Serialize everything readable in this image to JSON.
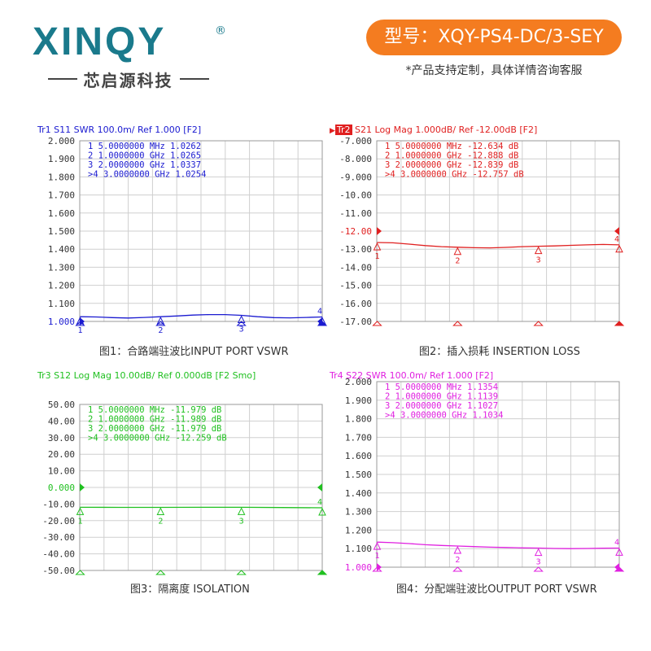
{
  "brand": {
    "logo_text": "XINQY",
    "registered": "®",
    "company_cn": "芯启源科技",
    "model_label": "型号：XQY-PS4-DC/3-SEY",
    "custom_note": "*产品支持定制，具体详情咨询客服"
  },
  "chart_data": [
    {
      "type": "line",
      "trace": "Tr1",
      "header_rest": "S11  SWR 100.0m/ Ref 1.000 [F2]",
      "color": "#1a1ad0",
      "ylim": [
        1.0,
        2.0
      ],
      "yticks": [
        "2.000",
        "1.900",
        "1.800",
        "1.700",
        "1.600",
        "1.500",
        "1.400",
        "1.300",
        "1.200",
        "1.100",
        "1.000"
      ],
      "ref_value": 1.0,
      "markers": [
        {
          "id": "1",
          "line": " 1  5.0000000 MHz  1.0262",
          "x": 0.005,
          "y": 1.0262
        },
        {
          "id": "2",
          "line": " 2  1.0000000 GHz  1.0265",
          "x": 1.0,
          "y": 1.0265
        },
        {
          "id": "3",
          "line": " 3  2.0000000 GHz  1.0337",
          "x": 2.0,
          "y": 1.0337
        },
        {
          "id": "4",
          "line": ">4  3.0000000 GHz  1.0254",
          "x": 3.0,
          "y": 1.0254
        }
      ],
      "x": [
        0.005,
        0.2,
        0.4,
        0.6,
        0.8,
        1.0,
        1.2,
        1.4,
        1.6,
        1.8,
        2.0,
        2.2,
        2.4,
        2.6,
        2.8,
        3.0
      ],
      "y": [
        1.026,
        1.025,
        1.021,
        1.019,
        1.022,
        1.026,
        1.03,
        1.035,
        1.038,
        1.038,
        1.034,
        1.026,
        1.021,
        1.02,
        1.022,
        1.025
      ],
      "caption": "图1：合路端驻波比INPUT PORT VSWR"
    },
    {
      "type": "line",
      "trace": "Tr2",
      "header_rest": "S21  Log Mag 1.000dB/ Ref -12.00dB [F2]",
      "color": "#e02020",
      "ylim": [
        -17.0,
        -7.0
      ],
      "yticks": [
        "-7.000",
        "-8.000",
        "-9.000",
        "-10.00",
        "-11.00",
        "-12.00",
        "-13.00",
        "-14.00",
        "-15.00",
        "-16.00",
        "-17.00"
      ],
      "ref_value": -12.0,
      "markers": [
        {
          "id": "1",
          "line": " 1  5.0000000 MHz -12.634 dB",
          "x": 0.005,
          "y": -12.634
        },
        {
          "id": "2",
          "line": " 2  1.0000000 GHz -12.888 dB",
          "x": 1.0,
          "y": -12.888
        },
        {
          "id": "3",
          "line": " 3  2.0000000 GHz -12.839 dB",
          "x": 2.0,
          "y": -12.839
        },
        {
          "id": "4",
          "line": ">4  3.0000000 GHz -12.757 dB",
          "x": 3.0,
          "y": -12.757
        }
      ],
      "x": [
        0.005,
        0.2,
        0.4,
        0.6,
        0.8,
        1.0,
        1.2,
        1.4,
        1.6,
        1.8,
        2.0,
        2.2,
        2.4,
        2.6,
        2.8,
        3.0
      ],
      "y": [
        -12.63,
        -12.65,
        -12.72,
        -12.8,
        -12.86,
        -12.89,
        -12.92,
        -12.93,
        -12.9,
        -12.86,
        -12.84,
        -12.82,
        -12.79,
        -12.76,
        -12.74,
        -12.76
      ],
      "caption": "图2：插入损耗 INSERTION LOSS"
    },
    {
      "type": "line",
      "trace": "Tr3",
      "header_rest": "S12  Log Mag 10.00dB/ Ref 0.000dB [F2 Smo]",
      "color": "#20c020",
      "ylim": [
        -50.0,
        50.0
      ],
      "yticks": [
        "50.00",
        "40.00",
        "30.00",
        "20.00",
        "10.00",
        "0.000",
        "-10.00",
        "-20.00",
        "-30.00",
        "-40.00",
        "-50.00"
      ],
      "ref_value": 0.0,
      "markers": [
        {
          "id": "1",
          "line": " 1  5.0000000 MHz -11.979 dB",
          "x": 0.005,
          "y": -11.979
        },
        {
          "id": "2",
          "line": " 2  1.0000000 GHz -11.989 dB",
          "x": 1.0,
          "y": -11.989
        },
        {
          "id": "3",
          "line": " 3  2.0000000 GHz -11.979 dB",
          "x": 2.0,
          "y": -11.979
        },
        {
          "id": "4",
          "line": ">4  3.0000000 GHz -12.259 dB",
          "x": 3.0,
          "y": -12.259
        }
      ],
      "x": [
        0.005,
        0.5,
        1.0,
        1.5,
        2.0,
        2.5,
        3.0
      ],
      "y": [
        -11.98,
        -11.99,
        -11.99,
        -11.98,
        -11.98,
        -12.1,
        -12.26
      ],
      "caption": "图3：隔离度 ISOLATION"
    },
    {
      "type": "line",
      "trace": "Tr4",
      "header_rest": "S22  SWR 100.0m/ Ref 1.000 [F2]",
      "color": "#e020e0",
      "ylim": [
        1.0,
        2.0
      ],
      "yticks": [
        "2.000",
        "1.900",
        "1.800",
        "1.700",
        "1.600",
        "1.500",
        "1.400",
        "1.300",
        "1.200",
        "1.100",
        "1.000"
      ],
      "ref_value": 1.0,
      "markers": [
        {
          "id": "1",
          "line": " 1  5.0000000 MHz  1.1354",
          "x": 0.005,
          "y": 1.1354
        },
        {
          "id": "2",
          "line": " 2  1.0000000 GHz  1.1139",
          "x": 1.0,
          "y": 1.1139
        },
        {
          "id": "3",
          "line": " 3  2.0000000 GHz  1.1027",
          "x": 2.0,
          "y": 1.1027
        },
        {
          "id": "4",
          "line": ">4  3.0000000 GHz  1.1034",
          "x": 3.0,
          "y": 1.1034
        }
      ],
      "x": [
        0.005,
        0.2,
        0.4,
        0.6,
        0.8,
        1.0,
        1.2,
        1.4,
        1.6,
        1.8,
        2.0,
        2.2,
        2.4,
        2.6,
        2.8,
        3.0
      ],
      "y": [
        1.135,
        1.132,
        1.127,
        1.121,
        1.117,
        1.114,
        1.111,
        1.108,
        1.106,
        1.104,
        1.103,
        1.101,
        1.1,
        1.101,
        1.102,
        1.103
      ],
      "caption": "图4：分配端驻波比OUTPUT PORT VSWR"
    }
  ]
}
